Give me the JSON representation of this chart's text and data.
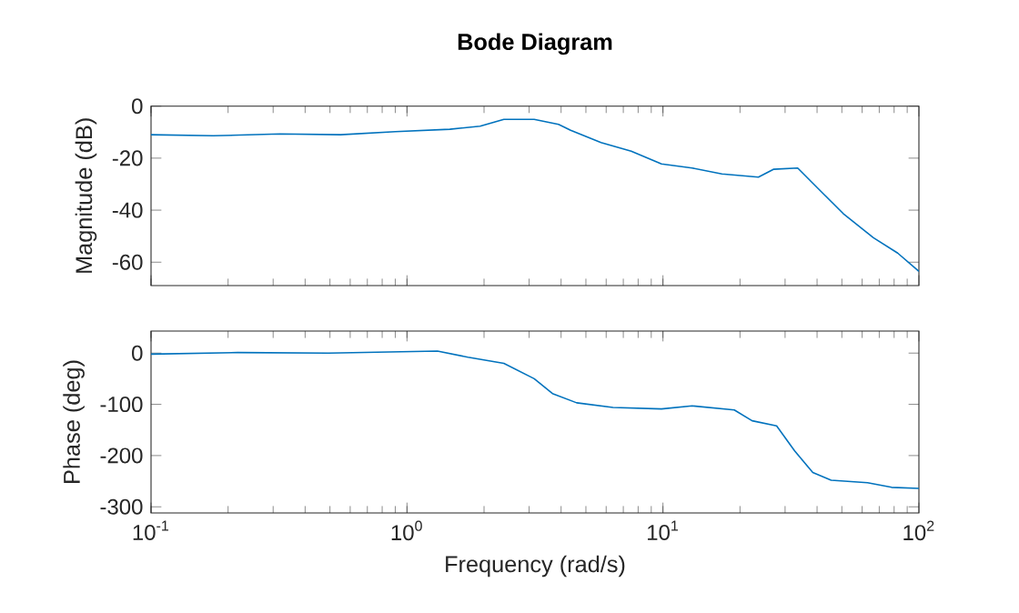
{
  "chart_data": [
    {
      "type": "line",
      "title": "Bode Diagram",
      "ylabel": "Magnitude (dB)",
      "log": "x",
      "grid": false,
      "tick_labels": "y",
      "color": "#0072bd",
      "x": [
        0.1,
        0.175,
        0.319,
        0.55,
        0.9,
        1.47,
        1.93,
        2.39,
        3.14,
        3.91,
        4.36,
        5.73,
        7.52,
        9.87,
        13.0,
        17.0,
        23.6,
        27.0,
        33.6,
        40.7,
        50.6,
        66.4,
        82.6,
        100
      ],
      "values": [
        -11,
        -11.4,
        -10.7,
        -11,
        -9.8,
        -8.9,
        -7.7,
        -5.1,
        -5.1,
        -7,
        -9.3,
        -14,
        -17.3,
        -22.2,
        -23.8,
        -26.1,
        -27.3,
        -24.3,
        -23.8,
        -32,
        -41.3,
        -50.6,
        -56.5,
        -63.5
      ],
      "xlim": [
        0.1,
        100
      ],
      "xticks": [
        0.1,
        1,
        10,
        100
      ],
      "ylim": [
        -69,
        0
      ],
      "yticks": [
        -60,
        -40,
        -20,
        0
      ]
    },
    {
      "type": "line",
      "xlabel": "Frequency (rad/s)",
      "ylabel": "Phase (deg)",
      "log": "x",
      "grid": false,
      "color": "#0072bd",
      "x": [
        0.1,
        0.218,
        0.493,
        1.315,
        1.73,
        2.39,
        3.14,
        3.7,
        4.6,
        6.38,
        9.87,
        13.0,
        19.0,
        22.3,
        27.8,
        32.7,
        38.5,
        45.4,
        63.0,
        78.2,
        100
      ],
      "values": [
        -2,
        1,
        0,
        4,
        -8,
        -20,
        -50,
        -79,
        -97,
        -106,
        -109,
        -103,
        -111,
        -132,
        -142,
        -191,
        -233,
        -248,
        -253,
        -262,
        -264
      ],
      "xlim": [
        0.1,
        100
      ],
      "xticks": [
        {
          "value": 0.1,
          "label": "10$^{-1}$"
        },
        {
          "value": 1,
          "label": "10$^{0}$"
        },
        {
          "value": 10,
          "label": "10$^{1}$"
        },
        {
          "value": 100,
          "label": "10$^{2}$"
        }
      ],
      "ylim": [
        -312,
        43
      ],
      "yticks": [
        -300,
        -200,
        -100,
        0
      ]
    }
  ]
}
